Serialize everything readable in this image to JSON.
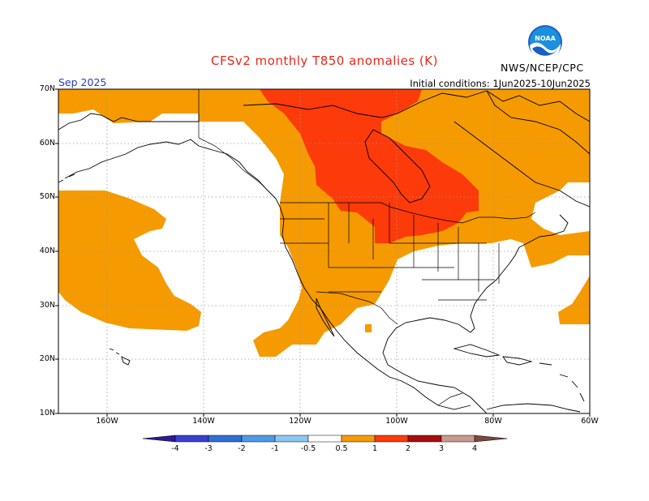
{
  "title": "CFSv2 monthly T850 anomalies (K)",
  "month": "Sep 2025",
  "initial_conditions": "Initial conditions: 1Jun2025-10Jun2025",
  "agency": "NWS/NCEP/CPC",
  "logo_icon": "noaa-logo-icon",
  "lat_labels": [
    "70N",
    "60N",
    "50N",
    "40N",
    "30N",
    "20N",
    "10N"
  ],
  "lon_labels": [
    "160W",
    "140W",
    "120W",
    "100W",
    "80W",
    "60W"
  ],
  "colorbar": {
    "labels": [
      "-4",
      "-3",
      "-2",
      "-1",
      "-0.5",
      "0.5",
      "1",
      "2",
      "3",
      "4"
    ],
    "colors": [
      "#2d1a96",
      "#3b3fd0",
      "#2e6fd6",
      "#4d9be6",
      "#8cc6f2",
      "#ffffff",
      "#f59a00",
      "#fc3a0a",
      "#a80c0c",
      "#c89a8e",
      "#7a4a3e"
    ]
  },
  "map": {
    "lat_range": [
      10,
      70
    ],
    "lon_range": [
      -170,
      -60
    ],
    "anomaly_levels": {
      "orange": "0.5 to 1 K",
      "red": "1 to 2 K"
    }
  }
}
